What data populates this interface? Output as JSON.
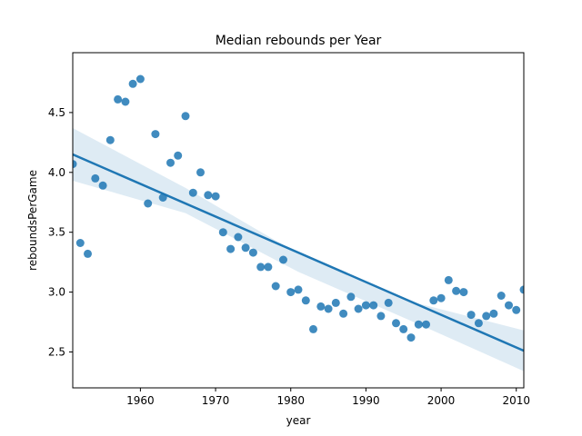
{
  "chart_data": {
    "type": "scatter",
    "title": "Median rebounds per Year",
    "xlabel": "year",
    "ylabel": "reboundsPerGame",
    "xlim": [
      1951,
      2011
    ],
    "ylim": [
      2.2,
      5.0
    ],
    "x_ticks": [
      1960,
      1970,
      1980,
      1990,
      2000,
      2010
    ],
    "y_ticks": [
      2.5,
      3.0,
      3.5,
      4.0,
      4.5
    ],
    "x_tick_labels": [
      "1960",
      "1970",
      "1980",
      "1990",
      "2000",
      "2010"
    ],
    "y_tick_labels": [
      "2.5",
      "3.0",
      "3.5",
      "4.0",
      "4.5"
    ],
    "grid": false,
    "legend": "none",
    "colors": {
      "points": "#1f77b4",
      "line": "#1f77b4",
      "band": "#1f77b4"
    },
    "points": [
      [
        1951,
        4.07
      ],
      [
        1952,
        3.41
      ],
      [
        1953,
        3.32
      ],
      [
        1954,
        3.95
      ],
      [
        1955,
        3.89
      ],
      [
        1956,
        4.27
      ],
      [
        1957,
        4.61
      ],
      [
        1958,
        4.59
      ],
      [
        1959,
        4.74
      ],
      [
        1960,
        4.78
      ],
      [
        1961,
        3.74
      ],
      [
        1962,
        4.32
      ],
      [
        1963,
        3.79
      ],
      [
        1964,
        4.08
      ],
      [
        1965,
        4.14
      ],
      [
        1966,
        4.47
      ],
      [
        1967,
        3.83
      ],
      [
        1968,
        4.0
      ],
      [
        1969,
        3.81
      ],
      [
        1970,
        3.8
      ],
      [
        1971,
        3.5
      ],
      [
        1972,
        3.36
      ],
      [
        1973,
        3.46
      ],
      [
        1974,
        3.37
      ],
      [
        1975,
        3.33
      ],
      [
        1976,
        3.21
      ],
      [
        1977,
        3.21
      ],
      [
        1978,
        3.05
      ],
      [
        1979,
        3.27
      ],
      [
        1980,
        3.0
      ],
      [
        1981,
        3.02
      ],
      [
        1982,
        2.93
      ],
      [
        1983,
        2.69
      ],
      [
        1984,
        2.88
      ],
      [
        1985,
        2.86
      ],
      [
        1986,
        2.91
      ],
      [
        1987,
        2.82
      ],
      [
        1988,
        2.96
      ],
      [
        1989,
        2.86
      ],
      [
        1990,
        2.89
      ],
      [
        1991,
        2.89
      ],
      [
        1992,
        2.8
      ],
      [
        1993,
        2.91
      ],
      [
        1994,
        2.74
      ],
      [
        1995,
        2.69
      ],
      [
        1996,
        2.62
      ],
      [
        1997,
        2.73
      ],
      [
        1998,
        2.73
      ],
      [
        1999,
        2.93
      ],
      [
        2000,
        2.95
      ],
      [
        2001,
        3.1
      ],
      [
        2002,
        3.01
      ],
      [
        2003,
        3.0
      ],
      [
        2004,
        2.81
      ],
      [
        2005,
        2.74
      ],
      [
        2006,
        2.8
      ],
      [
        2007,
        2.82
      ],
      [
        2008,
        2.97
      ],
      [
        2009,
        2.89
      ],
      [
        2010,
        2.85
      ],
      [
        2011,
        3.02
      ]
    ],
    "regression": {
      "line": [
        [
          1951,
          4.15
        ],
        [
          2011,
          2.51
        ]
      ],
      "ci_upper": [
        [
          1951,
          4.37
        ],
        [
          1966,
          3.87
        ],
        [
          1981,
          3.32
        ],
        [
          1996,
          2.92
        ],
        [
          2011,
          2.68
        ]
      ],
      "ci_lower": [
        [
          1951,
          3.93
        ],
        [
          1966,
          3.66
        ],
        [
          1981,
          3.17
        ],
        [
          1996,
          2.76
        ],
        [
          2011,
          2.34
        ]
      ]
    }
  }
}
